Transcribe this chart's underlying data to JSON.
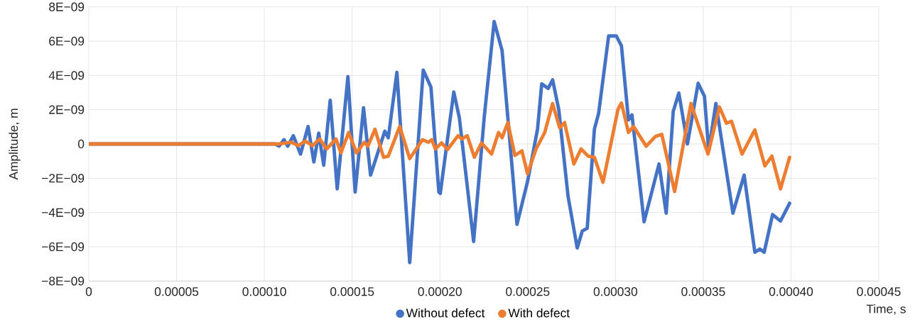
{
  "chart_data": {
    "type": "line",
    "xlabel": "Time, s",
    "ylabel": "Amplitude, m",
    "xlim": [
      0,
      0.00045
    ],
    "ylim": [
      -8e-09,
      8e-09
    ],
    "xticks": [
      {
        "value": 0,
        "label": "0"
      },
      {
        "value": 5e-05,
        "label": "0.00005"
      },
      {
        "value": 0.0001,
        "label": "0.00010"
      },
      {
        "value": 0.00015,
        "label": "0.00015"
      },
      {
        "value": 0.0002,
        "label": "0.00020"
      },
      {
        "value": 0.00025,
        "label": "0.00025"
      },
      {
        "value": 0.0003,
        "label": "0.00030"
      },
      {
        "value": 0.00035,
        "label": "0.00035"
      },
      {
        "value": 0.0004,
        "label": "0.00040"
      },
      {
        "value": 0.00045,
        "label": "0.00045"
      }
    ],
    "yticks": [
      {
        "value": -8e-09,
        "label": "−8E−09"
      },
      {
        "value": -6e-09,
        "label": "−6E−09"
      },
      {
        "value": -4e-09,
        "label": "−4E−09"
      },
      {
        "value": -2e-09,
        "label": "−2E−09"
      },
      {
        "value": 0,
        "label": "0"
      },
      {
        "value": 2e-09,
        "label": "2E−09"
      },
      {
        "value": 4e-09,
        "label": "4E−09"
      },
      {
        "value": 6e-09,
        "label": "6E−09"
      },
      {
        "value": 8e-09,
        "label": "8E−09"
      }
    ],
    "grid": true,
    "legend": "bottom",
    "line_style": "solid",
    "series": [
      {
        "name": "Without defect",
        "color": "#4472c4",
        "x": [
          0,
          0.000106,
          0.0001084,
          0.0001112,
          0.0001133,
          0.0001165,
          0.0001206,
          0.0001249,
          0.0001282,
          0.000131,
          0.0001338,
          0.0001375,
          0.0001415,
          0.0001476,
          0.0001517,
          0.0001565,
          0.0001605,
          0.0001686,
          0.0001706,
          0.0001755,
          0.0001828,
          0.0001905,
          0.0001949,
          0.0001994,
          0.0002002,
          0.0002079,
          0.0002111,
          0.0002192,
          0.0002253,
          0.0002309,
          0.0002354,
          0.0002439,
          0.0002499,
          0.0002556,
          0.000258,
          0.0002617,
          0.0002642,
          0.0002677,
          0.000273,
          0.0002782,
          0.0002811,
          0.0002839,
          0.000288,
          0.0002904,
          0.0002961,
          0.0003005,
          0.0003034,
          0.0003074,
          0.0003094,
          0.0003163,
          0.0003248,
          0.0003289,
          0.0003329,
          0.0003361,
          0.000341,
          0.0003471,
          0.0003507,
          0.0003531,
          0.0003572,
          0.0003669,
          0.0003733,
          0.0003794,
          0.0003822,
          0.0003847,
          0.0003895,
          0.000394,
          0.0003992
        ],
        "values": [
          0,
          0,
          -1.3e-10,
          2.5e-10,
          -1.3e-10,
          4.8e-10,
          -5.9e-10,
          1.02e-09,
          -1.05e-09,
          6.3e-10,
          -1.24e-09,
          2.55e-09,
          -2.62e-09,
          3.93e-09,
          -2.81e-09,
          2.11e-09,
          -1.82e-09,
          7.5e-10,
          3.6e-10,
          4.18e-09,
          -6.92e-09,
          4.31e-09,
          3.31e-09,
          -2.81e-09,
          -2.89e-09,
          3.03e-09,
          1.51e-09,
          -5.69e-09,
          1.63e-09,
          7.14e-09,
          5.46e-09,
          -4.69e-09,
          -2.2e-09,
          8.6e-10,
          3.51e-09,
          3.24e-09,
          3.74e-09,
          2.01e-09,
          -3.06e-09,
          -6.07e-09,
          -5.08e-09,
          -4.92e-09,
          8.6e-10,
          1.78e-09,
          6.3e-09,
          6.3e-09,
          5.73e-09,
          1.4e-09,
          1.7e-09,
          -4.54e-09,
          -1.17e-09,
          -4.04e-09,
          1.9e-09,
          2.97e-09,
          0,
          3.54e-09,
          2.78e-09,
          -4e-10,
          2.36e-09,
          -4.04e-09,
          -1.82e-09,
          -6.32e-09,
          -6.13e-09,
          -6.32e-09,
          -4.12e-09,
          -4.5e-09,
          -3.46e-09
        ]
      },
      {
        "name": "With defect",
        "color": "#ed7d31",
        "x": [
          0,
          0.0001084,
          0.0001153,
          0.0001193,
          0.0001234,
          0.0001274,
          0.0001315,
          0.0001355,
          0.0001408,
          0.0001436,
          0.000148,
          0.0001525,
          0.0001569,
          0.000159,
          0.000163,
          0.0001679,
          0.0001706,
          0.0001771,
          0.0001828,
          0.0001901,
          0.0001934,
          0.0001954,
          0.0001974,
          0.000201,
          0.0002043,
          0.0002103,
          0.0002124,
          0.0002156,
          0.0002196,
          0.0002237,
          0.0002294,
          0.0002334,
          0.0002354,
          0.0002387,
          0.0002427,
          0.0002467,
          0.0002499,
          0.0002548,
          0.0002597,
          0.0002642,
          0.0002682,
          0.000271,
          0.0002763,
          0.0002804,
          0.0002844,
          0.000288,
          0.0002929,
          0.0003014,
          0.0003034,
          0.0003074,
          0.0003103,
          0.0003175,
          0.0003228,
          0.0003264,
          0.0003337,
          0.000343,
          0.0003527,
          0.0003592,
          0.0003632,
          0.0003661,
          0.0003721,
          0.0003794,
          0.0003851,
          0.0003891,
          0.000394,
          0.0003992
        ],
        "values": [
          0,
          0,
          1e-10,
          -1e-10,
          1.7e-10,
          -1e-10,
          2.9e-10,
          -2.9e-10,
          2.9e-10,
          -5.2e-10,
          6.7e-10,
          -5.2e-10,
          1e-10,
          -1.3e-10,
          8.6e-10,
          -7.8e-10,
          -7.1e-10,
          1.02e-09,
          -8.6e-10,
          2.5e-10,
          1e-10,
          2.5e-10,
          -2.9e-10,
          6e-11,
          -3.3e-10,
          4.8e-10,
          2.9e-10,
          4.8e-10,
          -7.8e-10,
          6e-11,
          -5.9e-10,
          6.7e-10,
          3.6e-10,
          1.25e-09,
          -6.7e-10,
          -4e-10,
          -1.74e-09,
          -2.9e-10,
          6.7e-10,
          2.36e-09,
          9.4e-10,
          1.25e-09,
          -1.17e-09,
          -2.9e-10,
          -7.1e-10,
          -7.8e-10,
          -2.24e-09,
          2.01e-09,
          2.39e-09,
          6.7e-10,
          1.02e-09,
          -1.3e-10,
          4.4e-10,
          5.6e-10,
          -2.78e-09,
          2.36e-09,
          -5.9e-10,
          2.16e-09,
          1.21e-09,
          1.32e-09,
          -5.9e-10,
          8.2e-10,
          -1.28e-09,
          -7.1e-10,
          -2.62e-09,
          -7.8e-10
        ]
      }
    ]
  }
}
